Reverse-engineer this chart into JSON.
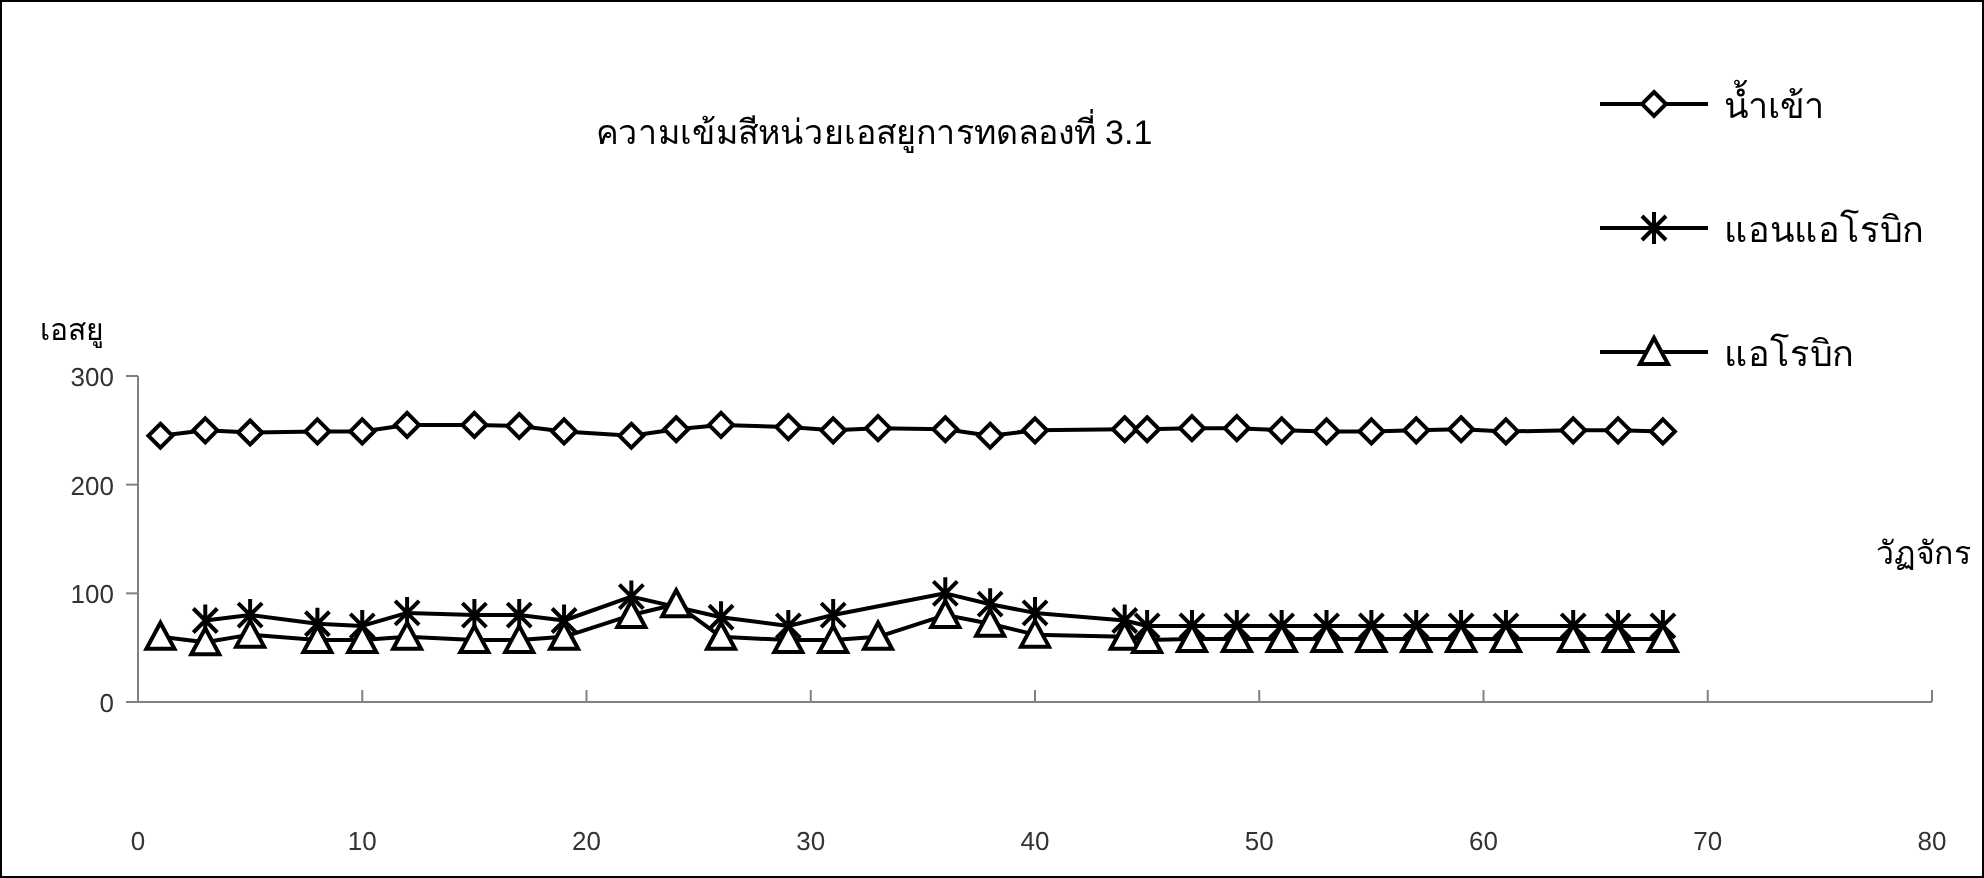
{
  "chart_data": {
    "type": "line",
    "title": "ความเข้มสีหน่วยเอสยูการทดลองที่ 3.1",
    "xlabel": "วัฏจักร",
    "ylabel": "เอสยู",
    "xlim": [
      0,
      80
    ],
    "xticks": [
      0,
      10,
      20,
      30,
      40,
      50,
      60,
      70,
      80
    ],
    "ylim": [
      0,
      300
    ],
    "yticks": [
      0,
      100,
      200,
      300
    ],
    "grid": false,
    "legend": "top right",
    "line_style": "solid",
    "series": [
      {
        "name": "น้ำเข้า",
        "color": "#000000",
        "marker": "diamond",
        "x": [
          1,
          3,
          5,
          8,
          10,
          12,
          15,
          17,
          19,
          22,
          24,
          26,
          29,
          31,
          33,
          36,
          38,
          40,
          44,
          45,
          47,
          49,
          51,
          53,
          55,
          57,
          59,
          61,
          64,
          66,
          68
        ],
        "values": [
          245,
          250,
          248,
          249,
          249,
          255,
          255,
          254,
          249,
          245,
          251,
          255,
          253,
          250,
          252,
          251,
          245,
          250,
          251,
          251,
          252,
          252,
          250,
          249,
          249,
          250,
          251,
          249,
          250,
          250,
          249
        ]
      },
      {
        "name": "แอนแอโรบิก",
        "color": "#000000",
        "marker": "cross",
        "x": [
          3,
          5,
          8,
          10,
          12,
          15,
          17,
          19,
          22,
          26,
          29,
          31,
          36,
          38,
          40,
          44,
          45,
          47,
          49,
          51,
          53,
          55,
          57,
          59,
          61,
          64,
          66,
          68
        ],
        "values": [
          75,
          80,
          72,
          70,
          82,
          80,
          80,
          75,
          97,
          78,
          70,
          80,
          100,
          90,
          82,
          75,
          70,
          70,
          70,
          70,
          70,
          70,
          70,
          70,
          70,
          70,
          70,
          70
        ]
      },
      {
        "name": "แอโรบิก",
        "color": "#000000",
        "marker": "triangle",
        "x": [
          1,
          3,
          5,
          8,
          10,
          12,
          15,
          17,
          19,
          22,
          24,
          26,
          29,
          31,
          33,
          36,
          38,
          40,
          44,
          45,
          47,
          49,
          51,
          53,
          55,
          57,
          59,
          61,
          64,
          66,
          68
        ],
        "values": [
          60,
          55,
          62,
          57,
          57,
          60,
          57,
          57,
          60,
          80,
          90,
          60,
          57,
          57,
          60,
          80,
          72,
          62,
          60,
          57,
          58,
          58,
          58,
          58,
          58,
          58,
          58,
          58,
          58,
          58,
          58
        ]
      }
    ]
  }
}
